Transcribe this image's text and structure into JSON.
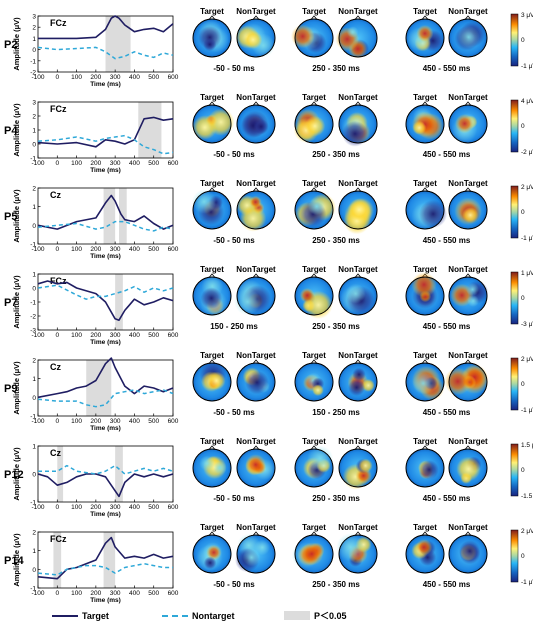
{
  "common": {
    "ylabel": "Amplitude (μV)",
    "xlabel": "Time (ms)",
    "xticks": [
      -100,
      0,
      100,
      200,
      300,
      400,
      500,
      600
    ],
    "map_labels": [
      "Target",
      "NonTarget",
      "Target",
      "NonTarget",
      "Target",
      "NonTarget"
    ]
  },
  "legend": {
    "target": "Target",
    "nontarget": "Nontarget",
    "pvalue": "P＜0.05"
  },
  "colors": {
    "target": "#1f1d62",
    "nontarget": "#2ea8d8",
    "shade": "#dcdcdc"
  },
  "chart_data": [
    {
      "type": "line",
      "panel": "P2",
      "electrode": "FCz",
      "xlim": [
        -100,
        600
      ],
      "ylim": [
        -2,
        3
      ],
      "yticks": [
        -2,
        -1,
        0,
        1,
        2,
        3
      ],
      "sig_windows": [
        [
          250,
          380
        ]
      ],
      "series": [
        {
          "name": "Target",
          "x": [
            -100,
            0,
            100,
            200,
            250,
            280,
            300,
            320,
            350,
            400,
            450,
            500,
            550,
            600
          ],
          "values": [
            1.0,
            1.0,
            1.0,
            1.1,
            1.8,
            2.8,
            3.0,
            2.8,
            2.2,
            1.6,
            1.8,
            1.9,
            1.6,
            2.3
          ]
        },
        {
          "name": "Nontarget",
          "x": [
            -100,
            0,
            100,
            200,
            250,
            300,
            350,
            400,
            450,
            500,
            550,
            600
          ],
          "values": [
            0.2,
            0.0,
            0.1,
            0.2,
            -0.2,
            -0.8,
            -0.6,
            -0.2,
            -0.5,
            -0.7,
            -0.3,
            -0.5
          ]
        }
      ],
      "maps": [
        {
          "window": "-50 - 50 ms"
        },
        {
          "window": "250 - 350 ms"
        },
        {
          "window": "450 - 550 ms"
        }
      ],
      "colorbar": {
        "top": "3 μV",
        "mid": "0",
        "bottom": "-1 μV"
      }
    },
    {
      "type": "line",
      "panel": "P4",
      "electrode": "FCz",
      "xlim": [
        -100,
        600
      ],
      "ylim": [
        -1,
        3
      ],
      "yticks": [
        -1,
        0,
        1,
        2,
        3
      ],
      "sig_windows": [
        [
          420,
          540
        ]
      ],
      "series": [
        {
          "name": "Target",
          "x": [
            -100,
            0,
            100,
            200,
            250,
            300,
            350,
            400,
            450,
            500,
            550,
            600
          ],
          "values": [
            0.1,
            0.0,
            0.1,
            -0.2,
            0.3,
            0.2,
            0.0,
            0.3,
            1.8,
            1.9,
            1.7,
            1.8
          ]
        },
        {
          "name": "Nontarget",
          "x": [
            -100,
            0,
            100,
            200,
            250,
            300,
            350,
            400,
            450,
            500,
            550,
            600
          ],
          "values": [
            0.2,
            0.3,
            0.5,
            0.2,
            0.4,
            0.5,
            0.6,
            0.3,
            -0.2,
            -0.4,
            -0.7,
            -0.6
          ]
        }
      ],
      "maps": [
        {
          "window": "-50 - 50 ms"
        },
        {
          "window": "250 - 350 ms"
        },
        {
          "window": "450 - 550 ms"
        }
      ],
      "colorbar": {
        "top": "4 μV",
        "mid": "0",
        "bottom": "-2 μV"
      }
    },
    {
      "type": "line",
      "panel": "P5",
      "electrode": "Cz",
      "xlim": [
        -100,
        600
      ],
      "ylim": [
        -1,
        2
      ],
      "yticks": [
        -1,
        0,
        1,
        2
      ],
      "sig_windows": [
        [
          240,
          300
        ],
        [
          320,
          360
        ]
      ],
      "series": [
        {
          "name": "Target",
          "x": [
            -100,
            0,
            100,
            200,
            250,
            280,
            300,
            330,
            350,
            400,
            450,
            500,
            550,
            600
          ],
          "values": [
            0.0,
            -0.2,
            0.2,
            0.4,
            1.2,
            1.6,
            1.3,
            0.6,
            0.3,
            0.2,
            0.5,
            0.1,
            -0.2,
            0.0
          ]
        },
        {
          "name": "Nontarget",
          "x": [
            -100,
            0,
            100,
            200,
            250,
            300,
            350,
            400,
            450,
            500,
            550,
            600
          ],
          "values": [
            -0.1,
            0.0,
            0.1,
            -0.2,
            -0.1,
            0.2,
            0.2,
            0.0,
            -0.2,
            -0.3,
            -0.1,
            -0.2
          ]
        }
      ],
      "maps": [
        {
          "window": "-50 - 50 ms"
        },
        {
          "window": "250 - 350 ms"
        },
        {
          "window": "450 - 550 ms"
        }
      ],
      "colorbar": {
        "top": "2 μV",
        "mid": "0",
        "bottom": "-1 μV"
      }
    },
    {
      "type": "line",
      "panel": "P7",
      "electrode": "FCz",
      "xlim": [
        -100,
        600
      ],
      "ylim": [
        -3,
        1
      ],
      "yticks": [
        -3,
        -2,
        -1,
        0,
        1
      ],
      "sig_windows": [
        [
          300,
          340
        ]
      ],
      "series": [
        {
          "name": "Target",
          "x": [
            -100,
            -50,
            0,
            50,
            100,
            200,
            250,
            300,
            320,
            350,
            400,
            450,
            500,
            550,
            600
          ],
          "values": [
            0.3,
            0.5,
            0.3,
            0.4,
            0.0,
            -0.4,
            -1.0,
            -2.2,
            -2.3,
            -1.6,
            -0.8,
            -1.2,
            -1.0,
            -0.7,
            -0.9
          ]
        },
        {
          "name": "Nontarget",
          "x": [
            -100,
            0,
            100,
            150,
            200,
            250,
            300,
            350,
            400,
            450,
            500,
            550,
            600
          ],
          "values": [
            0.0,
            0.2,
            -0.5,
            -0.8,
            -0.6,
            -0.6,
            -0.4,
            -0.2,
            0.1,
            -0.3,
            0.0,
            -0.2,
            0.0
          ]
        }
      ],
      "maps": [
        {
          "window": "150 - 250 ms"
        },
        {
          "window": "250 - 350 ms"
        },
        {
          "window": "450 - 550 ms"
        }
      ],
      "colorbar": {
        "top": "1 μV",
        "mid": "0",
        "bottom": "-3 μV"
      }
    },
    {
      "type": "line",
      "panel": "P9",
      "electrode": "Cz",
      "xlim": [
        -100,
        600
      ],
      "ylim": [
        -1,
        2
      ],
      "yticks": [
        -1,
        0,
        1,
        2
      ],
      "sig_windows": [
        [
          150,
          280
        ]
      ],
      "series": [
        {
          "name": "Target",
          "x": [
            -100,
            0,
            50,
            100,
            150,
            200,
            250,
            280,
            300,
            350,
            400,
            450,
            500,
            550,
            600
          ],
          "values": [
            0.0,
            0.2,
            0.3,
            0.5,
            0.6,
            0.9,
            1.8,
            2.1,
            1.6,
            0.6,
            0.2,
            0.6,
            0.5,
            0.3,
            0.5
          ]
        },
        {
          "name": "Nontarget",
          "x": [
            -100,
            0,
            100,
            150,
            200,
            250,
            300,
            350,
            400,
            450,
            500,
            550,
            600
          ],
          "values": [
            -0.1,
            -0.2,
            -0.2,
            -0.4,
            -0.5,
            -0.4,
            0.2,
            0.3,
            0.4,
            0.2,
            0.3,
            0.4,
            0.2
          ]
        }
      ],
      "maps": [
        {
          "window": "-50 - 50 ms"
        },
        {
          "window": "150 - 250 ms"
        },
        {
          "window": "450 - 550 ms"
        }
      ],
      "colorbar": {
        "top": "2 μV",
        "mid": "0",
        "bottom": "-1 μV"
      }
    },
    {
      "type": "line",
      "panel": "P12",
      "electrode": "Cz",
      "xlim": [
        -100,
        600
      ],
      "ylim": [
        -1,
        1
      ],
      "yticks": [
        -1,
        0,
        1
      ],
      "sig_windows": [
        [
          0,
          30
        ],
        [
          300,
          340
        ]
      ],
      "series": [
        {
          "name": "Target",
          "x": [
            -100,
            -50,
            0,
            50,
            100,
            150,
            200,
            250,
            300,
            320,
            350,
            400,
            450,
            500,
            550,
            600
          ],
          "values": [
            0.0,
            -0.1,
            -0.4,
            -0.3,
            -0.1,
            0.0,
            0.0,
            -0.1,
            -0.6,
            -0.8,
            -0.3,
            0.0,
            -0.1,
            0.0,
            -0.1,
            0.0
          ]
        },
        {
          "name": "Nontarget",
          "x": [
            -100,
            0,
            50,
            100,
            200,
            250,
            300,
            350,
            400,
            450,
            500,
            550,
            600
          ],
          "values": [
            0.1,
            0.1,
            0.3,
            0.1,
            0.0,
            0.1,
            0.3,
            0.0,
            0.1,
            0.2,
            0.1,
            0.2,
            0.1
          ]
        }
      ],
      "maps": [
        {
          "window": "-50 - 50 ms"
        },
        {
          "window": "250 - 350 ms"
        },
        {
          "window": "450 - 550 ms"
        }
      ],
      "colorbar": {
        "top": "1.5 μV",
        "mid": "0",
        "bottom": "-1.5 μV"
      }
    },
    {
      "type": "line",
      "panel": "P14",
      "electrode": "FCz",
      "xlim": [
        -100,
        600
      ],
      "ylim": [
        -1,
        2
      ],
      "yticks": [
        -1,
        0,
        1,
        2
      ],
      "sig_windows": [
        [
          -20,
          20
        ],
        [
          240,
          300
        ]
      ],
      "series": [
        {
          "name": "Target",
          "x": [
            -100,
            0,
            50,
            100,
            150,
            200,
            250,
            280,
            300,
            350,
            400,
            450,
            500,
            550,
            600
          ],
          "values": [
            -0.4,
            -0.5,
            0.0,
            0.1,
            0.3,
            0.5,
            1.4,
            1.7,
            1.2,
            0.6,
            0.7,
            0.6,
            0.8,
            0.6,
            0.7
          ]
        },
        {
          "name": "Nontarget",
          "x": [
            -100,
            0,
            50,
            100,
            150,
            200,
            250,
            300,
            350,
            400,
            450,
            500,
            550,
            600
          ],
          "values": [
            -0.2,
            -0.3,
            0.0,
            0.1,
            0.2,
            0.2,
            0.1,
            -0.2,
            0.1,
            0.2,
            0.3,
            0.2,
            0.1,
            0.1
          ]
        }
      ],
      "maps": [
        {
          "window": "-50 - 50 ms"
        },
        {
          "window": "250 - 350 ms"
        },
        {
          "window": "450 - 550 ms"
        }
      ],
      "colorbar": {
        "top": "2 μV",
        "mid": "0",
        "bottom": "-1 μV"
      }
    }
  ]
}
